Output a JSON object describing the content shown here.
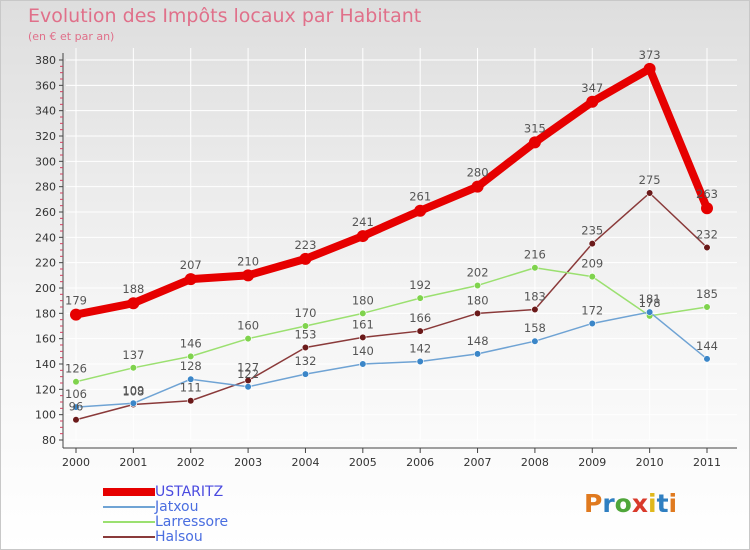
{
  "title": "Evolution des Impôts locaux par Habitant",
  "subtitle": "(en € et par an)",
  "logo": {
    "text": "Proxiti",
    "letter_colors": [
      "#e07a1f",
      "#2f7fc1",
      "#4fa63a",
      "#d93a2b",
      "#e0b81c",
      "#2f7fc1",
      "#e07a1f"
    ]
  },
  "chart_data": {
    "type": "line",
    "title": "Evolution des Impôts locaux par Habitant",
    "subtitle": "(en € et par an)",
    "xlabel": "",
    "ylabel": "",
    "ylim": [
      80,
      380
    ],
    "yticks": [
      80,
      100,
      120,
      140,
      160,
      180,
      200,
      220,
      240,
      260,
      280,
      300,
      320,
      340,
      360,
      380
    ],
    "ytick_labels": [
      "80",
      "100",
      "120",
      "140",
      "160",
      "180",
      "200",
      "220",
      "240",
      "260",
      "280",
      "300",
      "320",
      "340",
      "360",
      "380"
    ],
    "categories": [
      "2000",
      "2001",
      "2002",
      "2003",
      "2004",
      "2005",
      "2006",
      "2007",
      "2008",
      "2009",
      "2010",
      "2011"
    ],
    "legend_position": "bottom-left",
    "series": [
      {
        "name": "USTARITZ",
        "color": "#e60000",
        "marker": "#e60000",
        "label_color": "#555555",
        "values": [
          179,
          188,
          207,
          210,
          223,
          241,
          261,
          280,
          315,
          347,
          373,
          263
        ],
        "labels": [
          "179",
          "188",
          "207",
          "210",
          "223",
          "241",
          "261",
          "280",
          "315",
          "347",
          "373",
          "263"
        ]
      },
      {
        "name": "Jatxou",
        "color": "#6fa3d4",
        "marker": "#3b86c8",
        "label_color": "#555555",
        "values": [
          106,
          109,
          128,
          122,
          132,
          140,
          142,
          148,
          158,
          172,
          181,
          144
        ],
        "labels": [
          "106",
          "109",
          "128",
          "122",
          "132",
          "140",
          "142",
          "148",
          "158",
          "172",
          "181",
          "144"
        ]
      },
      {
        "name": "Larressore",
        "color": "#9be070",
        "marker": "#7fd34d",
        "label_color": "#555555",
        "values": [
          126,
          137,
          146,
          160,
          170,
          180,
          192,
          202,
          216,
          209,
          178,
          185
        ],
        "labels": [
          "126",
          "137",
          "146",
          "160",
          "170",
          "180",
          "192",
          "202",
          "216",
          "209",
          "178",
          "185"
        ]
      },
      {
        "name": "Halsou",
        "color": "#8a3a3a",
        "marker": "#6b1a1a",
        "label_color": "#555555",
        "values": [
          96,
          108,
          111,
          127,
          153,
          161,
          166,
          180,
          183,
          235,
          275,
          232
        ],
        "labels": [
          "96",
          "108",
          "111",
          "127",
          "153",
          "161",
          "166",
          "180",
          "183",
          "235",
          "275",
          "232"
        ]
      }
    ]
  }
}
